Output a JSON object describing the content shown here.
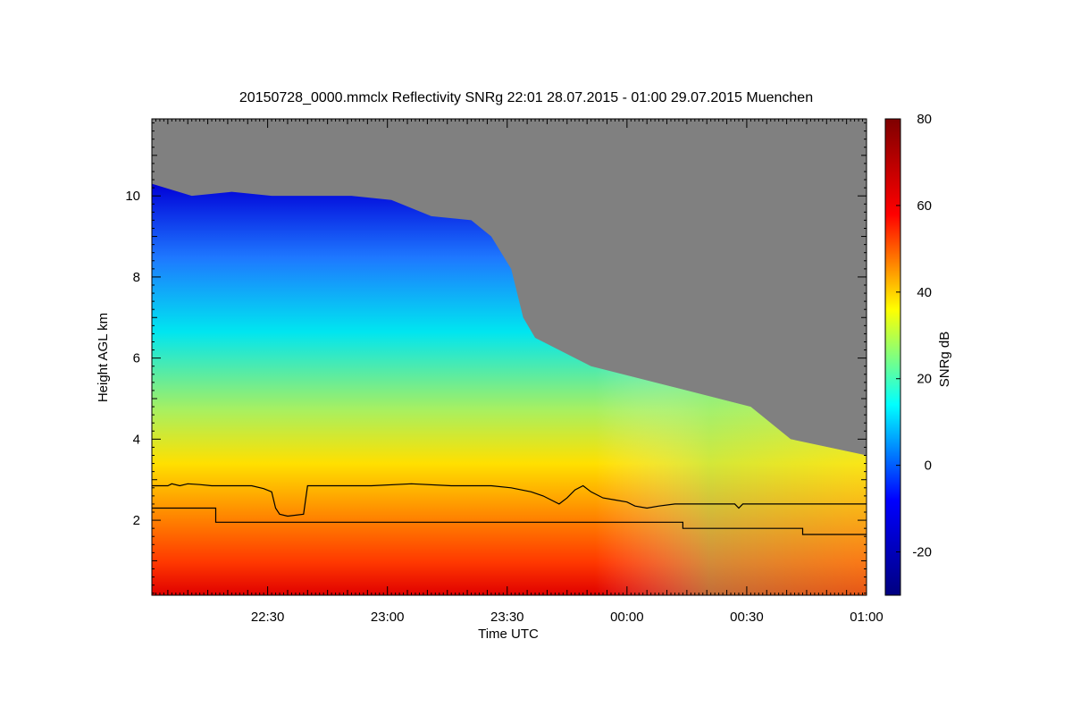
{
  "chart_data": {
    "type": "heatmap",
    "title": "20150728_0000.mmclx Reflectivity SNRg   22:01 28.07.2015 - 01:00 29.07.2015 Muenchen",
    "xlabel": "Time UTC",
    "ylabel": "Height AGL km",
    "colorbar_label": "SNRg dB",
    "x_domain": [
      "22:01",
      "01:00"
    ],
    "xlim_minutes": [
      0,
      179
    ],
    "xticks": [
      {
        "label": "22:30",
        "value": 29
      },
      {
        "label": "23:00",
        "value": 59
      },
      {
        "label": "23:30",
        "value": 89
      },
      {
        "label": "00:00",
        "value": 119
      },
      {
        "label": "00:30",
        "value": 149
      },
      {
        "label": "01:00",
        "value": 179
      }
    ],
    "ylim": [
      0.15,
      11.9
    ],
    "yticks": [
      {
        "label": "2",
        "value": 2
      },
      {
        "label": "4",
        "value": 4
      },
      {
        "label": "6",
        "value": 6
      },
      {
        "label": "8",
        "value": 8
      },
      {
        "label": "10",
        "value": 10
      }
    ],
    "colorbar_range": [
      -30,
      80
    ],
    "colorbar_ticks": [
      {
        "label": "-20",
        "value": -20
      },
      {
        "label": "0",
        "value": 0
      },
      {
        "label": "20",
        "value": 20
      },
      {
        "label": "40",
        "value": 40
      },
      {
        "label": "60",
        "value": 60
      },
      {
        "label": "80",
        "value": 80
      }
    ],
    "colormap": [
      "#00007f",
      "#0000ff",
      "#00ffff",
      "#ffff00",
      "#ff0000",
      "#7f0000"
    ],
    "no_signal_color": "#808080",
    "echo_top_km": [
      [
        0,
        10.3
      ],
      [
        10,
        10.0
      ],
      [
        20,
        10.1
      ],
      [
        30,
        10.0
      ],
      [
        40,
        10.0
      ],
      [
        50,
        10.0
      ],
      [
        60,
        9.9
      ],
      [
        70,
        9.5
      ],
      [
        80,
        9.4
      ],
      [
        85,
        9.0
      ],
      [
        90,
        8.2
      ],
      [
        93,
        7.0
      ],
      [
        96,
        6.5
      ],
      [
        110,
        5.8
      ],
      [
        130,
        5.3
      ],
      [
        150,
        4.8
      ],
      [
        160,
        4.0
      ],
      [
        179,
        3.6
      ]
    ],
    "series": [
      {
        "points": [
          [
            0,
            2.85
          ],
          [
            4,
            2.85
          ],
          [
            5,
            2.9
          ],
          [
            7,
            2.85
          ],
          [
            9,
            2.9
          ],
          [
            12,
            2.88
          ],
          [
            15,
            2.85
          ],
          [
            20,
            2.85
          ],
          [
            25,
            2.85
          ],
          [
            28,
            2.78
          ],
          [
            30,
            2.7
          ],
          [
            31,
            2.3
          ],
          [
            32,
            2.15
          ],
          [
            34,
            2.1
          ],
          [
            38,
            2.15
          ],
          [
            39,
            2.85
          ],
          [
            45,
            2.85
          ],
          [
            55,
            2.85
          ],
          [
            65,
            2.9
          ],
          [
            75,
            2.85
          ],
          [
            85,
            2.85
          ],
          [
            90,
            2.8
          ],
          [
            95,
            2.7
          ],
          [
            98,
            2.6
          ],
          [
            100,
            2.5
          ],
          [
            102,
            2.4
          ],
          [
            104,
            2.55
          ],
          [
            106,
            2.75
          ],
          [
            108,
            2.85
          ],
          [
            110,
            2.7
          ],
          [
            113,
            2.55
          ],
          [
            116,
            2.5
          ],
          [
            119,
            2.45
          ],
          [
            121,
            2.35
          ],
          [
            124,
            2.3
          ],
          [
            127,
            2.35
          ],
          [
            131,
            2.4
          ],
          [
            140,
            2.4
          ],
          [
            146,
            2.4
          ],
          [
            147,
            2.3
          ],
          [
            148,
            2.4
          ],
          [
            179,
            2.4
          ]
        ]
      },
      {
        "points": [
          [
            0,
            2.3
          ],
          [
            16,
            2.3
          ],
          [
            16,
            1.95
          ],
          [
            30,
            1.95
          ],
          [
            60,
            1.95
          ],
          [
            90,
            1.95
          ],
          [
            120,
            1.95
          ],
          [
            133,
            1.95
          ],
          [
            133,
            1.8
          ],
          [
            163,
            1.8
          ],
          [
            163,
            1.65
          ],
          [
            179,
            1.65
          ]
        ]
      }
    ]
  }
}
